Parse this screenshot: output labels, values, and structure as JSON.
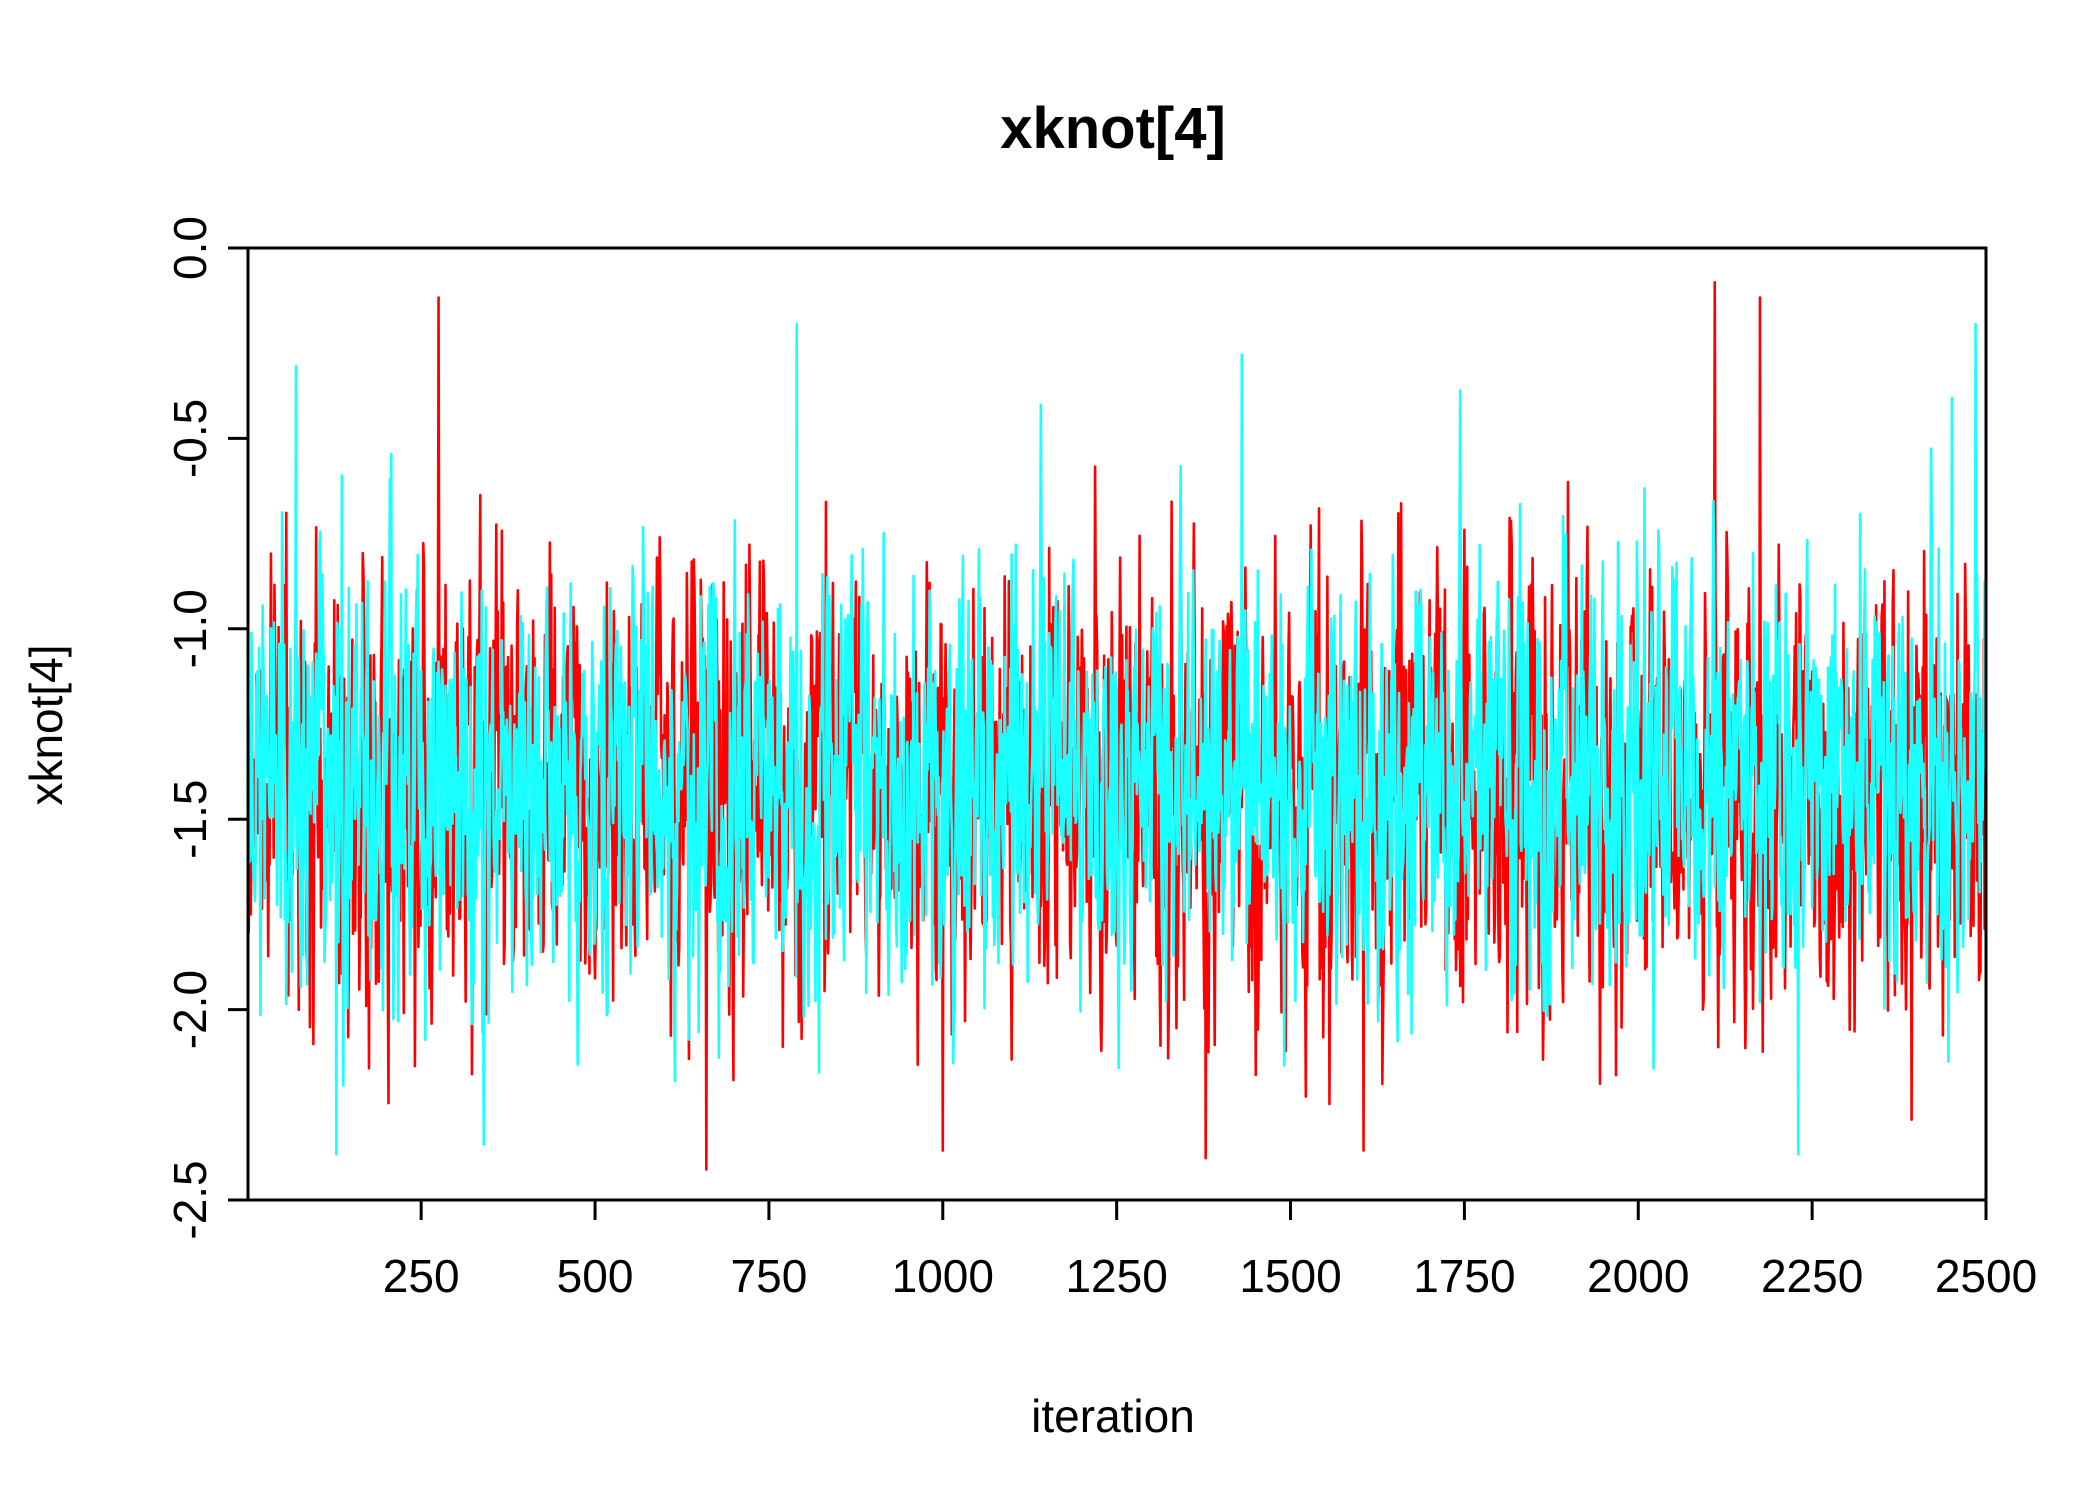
{
  "chart_data": {
    "type": "line",
    "title": "xknot[4]",
    "xlabel": "iteration",
    "ylabel": "xknot[4]",
    "xlim": [
      1,
      2500
    ],
    "ylim": [
      -2.5,
      0.0
    ],
    "x_ticks": [
      250,
      500,
      750,
      1000,
      1250,
      1500,
      1750,
      2000,
      2250,
      2500
    ],
    "y_ticks": [
      "-2.5",
      "-2.0",
      "-1.5",
      "-1.0",
      "-0.5",
      "0.0"
    ],
    "grid": false,
    "legend": "none",
    "x_range": [
      1,
      2500
    ],
    "series": [
      {
        "color": "#ff0000",
        "mean": -1.42,
        "sd": 0.29,
        "min": -2.42,
        "max": -0.09,
        "peaks": [
          {
            "x": 275,
            "y": -0.13
          },
          {
            "x": 660,
            "y": -2.42
          },
          {
            "x": 1000,
            "y": -2.37
          },
          {
            "x": 1378,
            "y": -2.39
          },
          {
            "x": 1605,
            "y": -2.37
          },
          {
            "x": 2110,
            "y": -0.09
          },
          {
            "x": 2175,
            "y": -0.13
          }
        ]
      },
      {
        "color": "#1affff",
        "mean": -1.42,
        "sd": 0.27,
        "min": -2.38,
        "max": -0.2,
        "peaks": [
          {
            "x": 70,
            "y": -0.31
          },
          {
            "x": 128,
            "y": -2.38
          },
          {
            "x": 790,
            "y": -0.2
          },
          {
            "x": 1430,
            "y": -0.28
          },
          {
            "x": 2230,
            "y": -2.38
          },
          {
            "x": 2485,
            "y": -0.2
          }
        ]
      }
    ]
  }
}
